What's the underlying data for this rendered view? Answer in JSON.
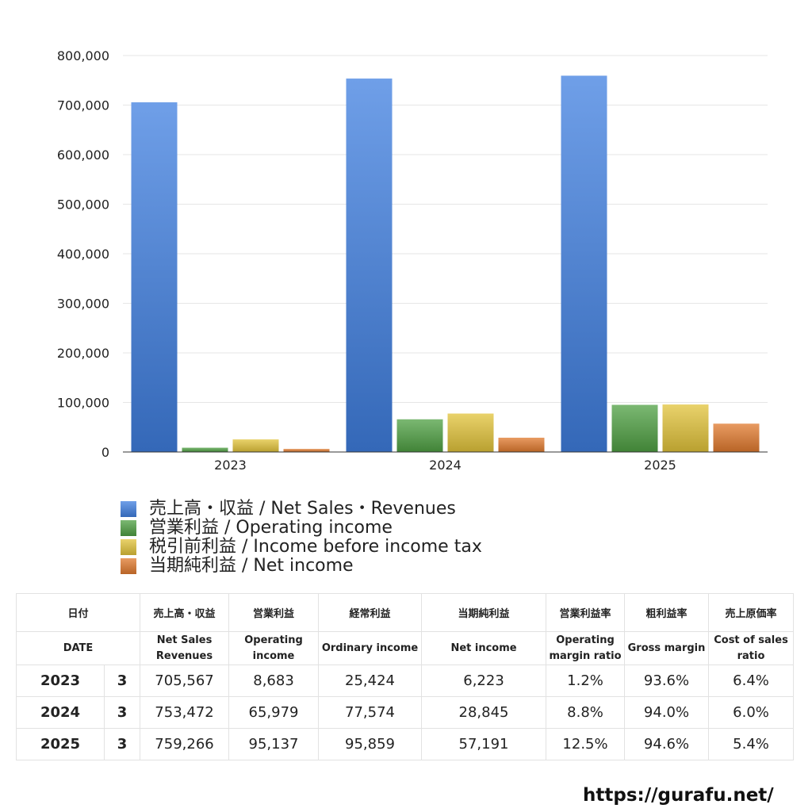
{
  "chart_data": {
    "type": "bar",
    "categories": [
      "2023",
      "2024",
      "2025"
    ],
    "series": [
      {
        "name": "売上高・収益 / Net Sales・Revenues",
        "values": [
          705567,
          753472,
          759266
        ],
        "color": "#3f7fe0"
      },
      {
        "name": "営業利益 / Operating income",
        "values": [
          8683,
          65979,
          95137
        ],
        "color": "#4fa043"
      },
      {
        "name": "税引前利益 / Income before income tax",
        "values": [
          25424,
          77574,
          95859
        ],
        "color": "#e2c33a"
      },
      {
        "name": "当期純利益 / Net income",
        "values": [
          6223,
          28845,
          57191
        ],
        "color": "#e07a2e"
      }
    ],
    "ylim": [
      0,
      800000
    ],
    "yticks": [
      "0",
      "100,000",
      "200,000",
      "300,000",
      "400,000",
      "500,000",
      "600,000",
      "700,000",
      "800,000"
    ],
    "grid": true,
    "legend_position": "bottom-left"
  },
  "table": {
    "header_jp": [
      "日付",
      "売上高・収益",
      "営業利益",
      "経常利益",
      "当期純利益",
      "営業利益率",
      "粗利益率",
      "売上原価率"
    ],
    "header_en": [
      "DATE",
      "Net Sales\nRevenues",
      "Operating\nincome",
      "Ordinary income",
      "Net income",
      "Operating\nmargin ratio",
      "Gross margin",
      "Cost of sales\nratio"
    ],
    "rows": [
      {
        "year": "2023",
        "months": "3",
        "sales": "705,567",
        "operating": "8,683",
        "ordinary": "25,424",
        "net": "6,223",
        "op_margin": "1.2%",
        "gross": "93.6%",
        "cost": "6.4%"
      },
      {
        "year": "2024",
        "months": "3",
        "sales": "753,472",
        "operating": "65,979",
        "ordinary": "77,574",
        "net": "28,845",
        "op_margin": "8.8%",
        "gross": "94.0%",
        "cost": "6.0%"
      },
      {
        "year": "2025",
        "months": "3",
        "sales": "759,266",
        "operating": "95,137",
        "ordinary": "95,859",
        "net": "57,191",
        "op_margin": "12.5%",
        "gross": "94.6%",
        "cost": "5.4%"
      }
    ]
  },
  "source": "https://gurafu.net/"
}
